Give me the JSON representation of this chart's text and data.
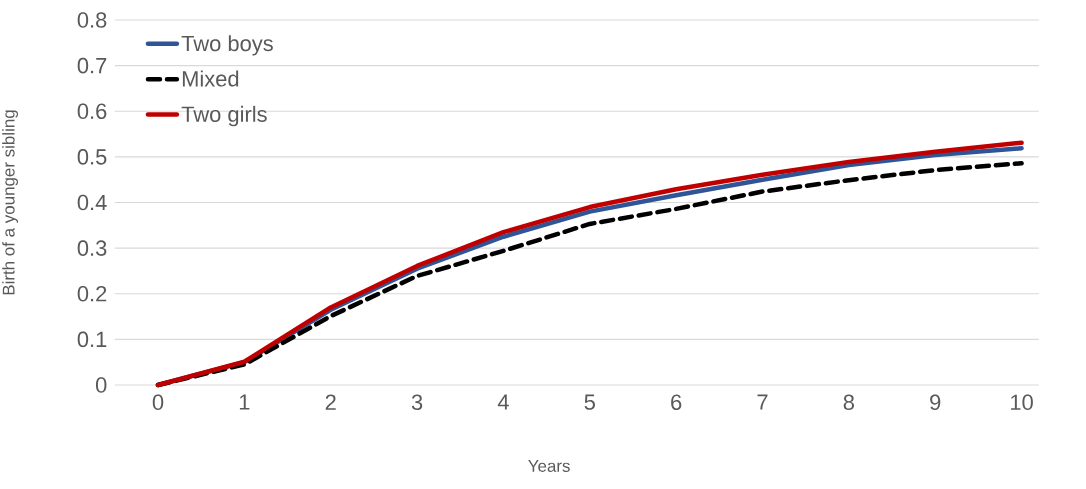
{
  "chart_data": {
    "type": "line",
    "xlabel": "Years",
    "ylabel": "Birth of a younger sibling",
    "categories": [
      "0",
      "1",
      "2",
      "3",
      "4",
      "5",
      "6",
      "7",
      "8",
      "9",
      "10"
    ],
    "series": [
      {
        "name": "Two boys",
        "color": "#2f5597",
        "line_style": "solid",
        "values": [
          0,
          0.05,
          0.165,
          0.255,
          0.325,
          0.38,
          0.416,
          0.45,
          0.482,
          0.504,
          0.519
        ]
      },
      {
        "name": "Mixed",
        "color": "#000000",
        "line_style": "dashed",
        "values": [
          0,
          0.045,
          0.151,
          0.239,
          0.294,
          0.353,
          0.386,
          0.424,
          0.449,
          0.471,
          0.486
        ]
      },
      {
        "name": "Two girls",
        "color": "#c00000",
        "line_style": "solid",
        "values": [
          0,
          0.051,
          0.17,
          0.261,
          0.335,
          0.39,
          0.429,
          0.461,
          0.489,
          0.511,
          0.531
        ]
      }
    ],
    "ylim": [
      0,
      0.8
    ],
    "yticks": [
      0,
      0.1,
      0.2,
      0.3,
      0.4,
      0.5,
      0.6,
      0.7,
      0.8
    ],
    "grid": "y",
    "legend": "top left",
    "marker": "none"
  }
}
